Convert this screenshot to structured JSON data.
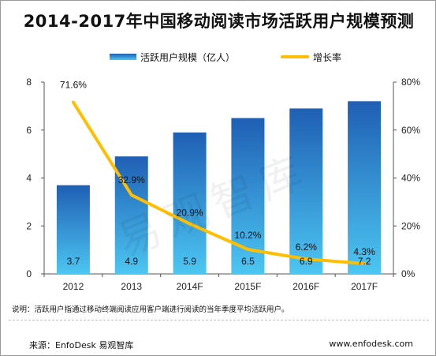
{
  "title": "2014-2017年中国移动阅读市场活跃用户规模预测",
  "note": "说明：活跃用户指通过移动终端阅读应用客户端进行阅读的当年季度平均活跃用户。",
  "source": "来源：EnfoDesk 易观智库",
  "website": "www.enfodesk.com",
  "watermark": "易观智库",
  "colors": {
    "bar_top": "#1f5fb4",
    "bar_bottom": "#4cc6f2",
    "line": "#ffbf00"
  },
  "chart_data": {
    "type": "bar",
    "title": "2014-2017年中国移动阅读市场活跃用户规模预测",
    "categories": [
      "2012",
      "2013",
      "2014F",
      "2015F",
      "2016F",
      "2017F"
    ],
    "series": [
      {
        "name": "活跃用户规模（亿人）",
        "type": "bar",
        "axis": "left",
        "values": [
          3.7,
          4.9,
          5.9,
          6.5,
          6.9,
          7.2
        ],
        "labels": [
          "3.7",
          "4.9",
          "5.9",
          "6.5",
          "6.9",
          "7.2"
        ]
      },
      {
        "name": "增长率",
        "type": "line",
        "axis": "right",
        "values": [
          71.6,
          32.9,
          20.9,
          10.2,
          6.2,
          4.3
        ],
        "labels": [
          "71.6%",
          "32.9%",
          "20.9%",
          "10.2%",
          "6.2%",
          "4.3%"
        ]
      }
    ],
    "y_left": {
      "range": [
        0,
        8
      ],
      "ticks": [
        "0",
        "2",
        "4",
        "6",
        "8"
      ]
    },
    "y_right": {
      "range": [
        0,
        80
      ],
      "ticks": [
        "0%",
        "20%",
        "40%",
        "60%",
        "80%"
      ]
    },
    "legend": "top",
    "grid": false
  }
}
